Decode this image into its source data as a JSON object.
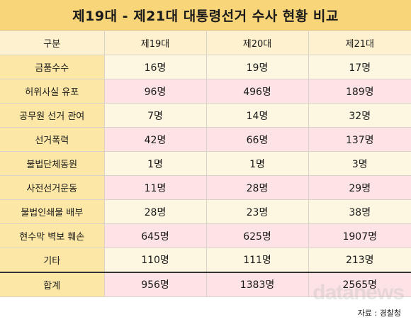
{
  "title": "제19대 - 제21대 대통령선거 수사 현황 비교",
  "header": {
    "label": "구분",
    "columns": [
      "제19대",
      "제20대",
      "제21대"
    ]
  },
  "rows": [
    {
      "label": "금품수수",
      "values": [
        "16명",
        "19명",
        "17명"
      ]
    },
    {
      "label": "허위사실 유포",
      "values": [
        "96명",
        "496명",
        "189명"
      ]
    },
    {
      "label": "공무원 선거 관여",
      "values": [
        "7명",
        "14명",
        "32명"
      ]
    },
    {
      "label": "선거폭력",
      "values": [
        "42명",
        "66명",
        "137명"
      ]
    },
    {
      "label": "불법단체동원",
      "values": [
        "1명",
        "1명",
        "3명"
      ]
    },
    {
      "label": "사전선거운동",
      "values": [
        "11명",
        "28명",
        "29명"
      ]
    },
    {
      "label": "불법인쇄물 배부",
      "values": [
        "28명",
        "23명",
        "38명"
      ]
    },
    {
      "label": "현수막 벽보 훼손",
      "values": [
        "645명",
        "625명",
        "1907명"
      ]
    },
    {
      "label": "기타",
      "values": [
        "110명",
        "111명",
        "213명"
      ]
    }
  ],
  "total": {
    "label": "합계",
    "values": [
      "956명",
      "1383명",
      "2565명"
    ]
  },
  "source": "자료 : 경찰청",
  "watermark": "datanews",
  "colors": {
    "title_bg": "#f9d57a",
    "label_bg": "#fce7a6",
    "row_cream": "#fdf6e0",
    "row_pink": "#fde2e6"
  }
}
